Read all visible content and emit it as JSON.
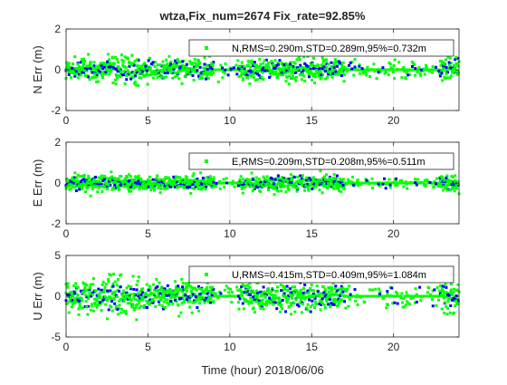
{
  "chart_data": {
    "type": "scatter",
    "title": "wtza,Fix_num=2674 Fix_rate=92.85%",
    "xlabel": "Time (hour)  2018/06/06",
    "xlim": [
      0,
      24
    ],
    "x_ticks": [
      0,
      5,
      10,
      15,
      20
    ],
    "x_tick_labels": [
      "0",
      "5",
      "10",
      "15",
      "20"
    ],
    "grid": "on",
    "colors": {
      "fix": "#00ff00",
      "float": "#0000ff",
      "axis": "#262626",
      "grid": "#e6e6e6"
    },
    "subplots": [
      {
        "ylabel": "N Err (m)",
        "ylim": [
          -2,
          2
        ],
        "y_ticks": [
          -2,
          0,
          2
        ],
        "y_tick_labels": [
          "-2",
          "0",
          "2"
        ],
        "legend": "N,RMS=0.290m,STD=0.289m,95%=0.732m",
        "legend_location": "top-right",
        "series": [
          {
            "name": "N,RMS=0.290m,STD=0.289m,95%=0.732m",
            "color": "#00ff00",
            "type": "fix",
            "amp": 0.5
          },
          {
            "color": "#0000ff",
            "type": "float",
            "amp": 0.45
          }
        ]
      },
      {
        "ylabel": "E Err (m)",
        "ylim": [
          -2,
          2
        ],
        "y_ticks": [
          -2,
          0,
          2
        ],
        "y_tick_labels": [
          "-2",
          "0",
          "2"
        ],
        "legend": "E,RMS=0.209m,STD=0.208m,95%=0.511m",
        "legend_location": "top-right",
        "series": [
          {
            "name": "E,RMS=0.209m,STD=0.208m,95%=0.511m",
            "color": "#00ff00",
            "type": "fix",
            "amp": 0.35
          },
          {
            "color": "#0000ff",
            "type": "float",
            "amp": 0.3
          }
        ]
      },
      {
        "ylabel": "U Err (m)",
        "ylim": [
          -5,
          5
        ],
        "y_ticks": [
          -5,
          0,
          5
        ],
        "y_tick_labels": [
          "-5",
          "0",
          "5"
        ],
        "legend": "U,RMS=0.415m,STD=0.409m,95%=1.084m",
        "legend_location": "top-right",
        "series": [
          {
            "name": "U,RMS=0.415m,STD=0.409m,95%=1.084m",
            "color": "#00ff00",
            "type": "fix",
            "amp": 0.7
          },
          {
            "color": "#0000ff",
            "type": "float",
            "amp": 0.6
          }
        ]
      }
    ],
    "activity_segments": [
      [
        0,
        9
      ],
      [
        10.5,
        17
      ],
      [
        22.8,
        24
      ]
    ]
  }
}
